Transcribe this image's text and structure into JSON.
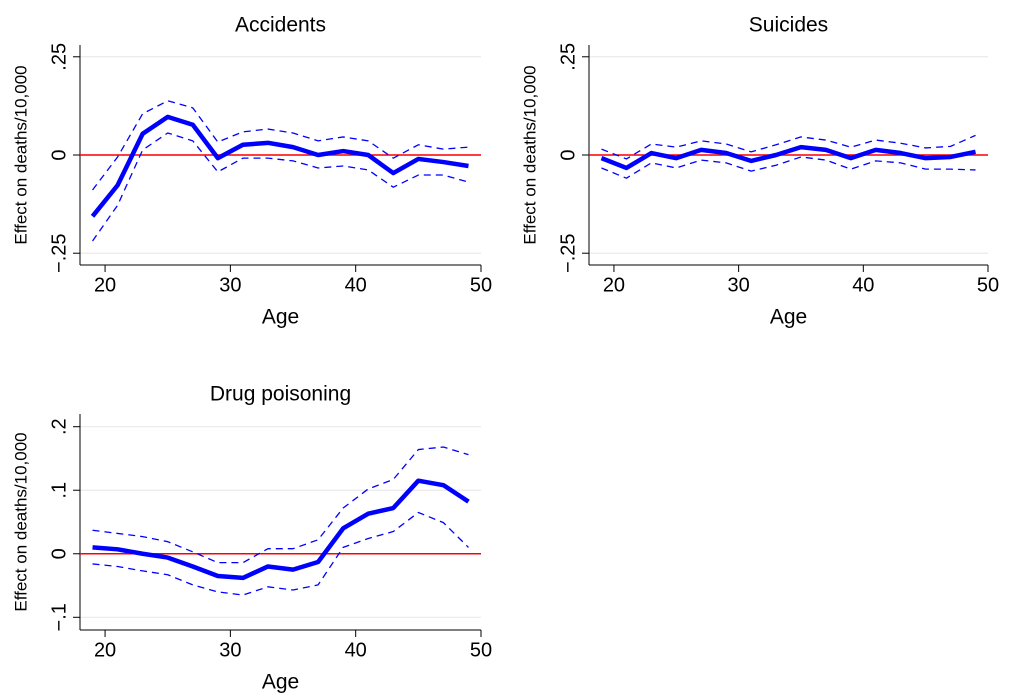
{
  "chart_data": [
    {
      "type": "line",
      "title": "Accidents",
      "xlabel": "Age",
      "ylabel": "Effect on deaths/10,000",
      "x": [
        19,
        21,
        23,
        25,
        27,
        29,
        31,
        33,
        35,
        37,
        39,
        41,
        43,
        45,
        47,
        49
      ],
      "series": [
        {
          "color": "#0000ff",
          "style": "solid",
          "values": [
            -0.156,
            -0.077,
            0.054,
            0.097,
            0.077,
            -0.008,
            0.026,
            0.031,
            0.02,
            0,
            0.01,
            0,
            -0.046,
            -0.01,
            -0.018,
            -0.028
          ]
        },
        {
          "color": "#0000ff",
          "style": "dashed",
          "values": [
            -0.089,
            -0.005,
            0.105,
            0.138,
            0.12,
            0.033,
            0.059,
            0.066,
            0.056,
            0.036,
            0.046,
            0.036,
            -0.008,
            0.026,
            0.015,
            0.02
          ]
        },
        {
          "color": "#0000ff",
          "style": "dashed",
          "values": [
            -0.219,
            -0.128,
            0.013,
            0.056,
            0.036,
            -0.043,
            -0.008,
            -0.008,
            -0.015,
            -0.033,
            -0.028,
            -0.038,
            -0.082,
            -0.051,
            -0.051,
            -0.069
          ]
        }
      ],
      "reference_line": {
        "value": 0,
        "color": "#ff0000"
      },
      "xlim": [
        18,
        50
      ],
      "xticks": [
        20,
        30,
        40,
        50
      ],
      "ylim": [
        -0.28,
        0.28
      ],
      "yticks": [
        {
          "value": -0.25,
          "label": "−.25"
        },
        0,
        {
          "value": 0.25,
          "label": ".25"
        }
      ],
      "grid": true
    },
    {
      "type": "line",
      "title": "Suicides",
      "xlabel": "Age",
      "ylabel": "Effect on deaths/10,000",
      "x": [
        19,
        21,
        23,
        25,
        27,
        29,
        31,
        33,
        35,
        37,
        39,
        41,
        43,
        45,
        47,
        49
      ],
      "series": [
        {
          "color": "#0000ff",
          "style": "solid",
          "values": [
            -0.008,
            -0.033,
            0.005,
            -0.008,
            0.013,
            0.005,
            -0.015,
            0,
            0.02,
            0.013,
            -0.008,
            0.013,
            0.005,
            -0.008,
            -0.005,
            0.008
          ]
        },
        {
          "color": "#0000ff",
          "style": "dashed",
          "values": [
            0.015,
            -0.01,
            0.028,
            0.02,
            0.036,
            0.028,
            0.008,
            0.026,
            0.046,
            0.038,
            0.02,
            0.038,
            0.03,
            0.018,
            0.022,
            0.05
          ]
        },
        {
          "color": "#0000ff",
          "style": "dashed",
          "values": [
            -0.033,
            -0.059,
            -0.02,
            -0.033,
            -0.013,
            -0.02,
            -0.041,
            -0.026,
            -0.005,
            -0.013,
            -0.036,
            -0.015,
            -0.02,
            -0.036,
            -0.036,
            -0.038
          ]
        }
      ],
      "reference_line": {
        "value": 0,
        "color": "#ff0000"
      },
      "xlim": [
        18,
        50
      ],
      "xticks": [
        20,
        30,
        40,
        50
      ],
      "ylim": [
        -0.28,
        0.28
      ],
      "yticks": [
        {
          "value": -0.25,
          "label": "−.25"
        },
        0,
        {
          "value": 0.25,
          "label": ".25"
        }
      ],
      "grid": true
    },
    {
      "type": "line",
      "title": "Drug poisoning",
      "xlabel": "Age",
      "ylabel": "Effect on deaths/10,000",
      "x": [
        19,
        21,
        23,
        25,
        27,
        29,
        31,
        33,
        35,
        37,
        39,
        41,
        43,
        45,
        47,
        49
      ],
      "series": [
        {
          "color": "#0000ff",
          "style": "solid",
          "values": [
            0.01,
            0.007,
            0,
            -0.006,
            -0.02,
            -0.035,
            -0.038,
            -0.02,
            -0.025,
            -0.013,
            0.04,
            0.063,
            0.072,
            0.115,
            0.108,
            0.082
          ]
        },
        {
          "color": "#0000ff",
          "style": "dashed",
          "values": [
            0.037,
            0.032,
            0.027,
            0.019,
            0.003,
            -0.014,
            -0.014,
            0.008,
            0.008,
            0.022,
            0.072,
            0.102,
            0.117,
            0.164,
            0.168,
            0.156
          ]
        },
        {
          "color": "#0000ff",
          "style": "dashed",
          "values": [
            -0.016,
            -0.02,
            -0.027,
            -0.033,
            -0.049,
            -0.06,
            -0.065,
            -0.052,
            -0.057,
            -0.049,
            0.01,
            0.024,
            0.035,
            0.065,
            0.049,
            0.01
          ]
        }
      ],
      "reference_line": {
        "value": 0,
        "color": "#ff0000"
      },
      "xlim": [
        18,
        50
      ],
      "xticks": [
        20,
        30,
        40,
        50
      ],
      "ylim": [
        -0.12,
        0.22
      ],
      "yticks": [
        {
          "value": -0.1,
          "label": "−.1"
        },
        0,
        {
          "value": 0.1,
          "label": ".1"
        },
        {
          "value": 0.2,
          "label": ".2"
        }
      ],
      "grid": true
    }
  ]
}
